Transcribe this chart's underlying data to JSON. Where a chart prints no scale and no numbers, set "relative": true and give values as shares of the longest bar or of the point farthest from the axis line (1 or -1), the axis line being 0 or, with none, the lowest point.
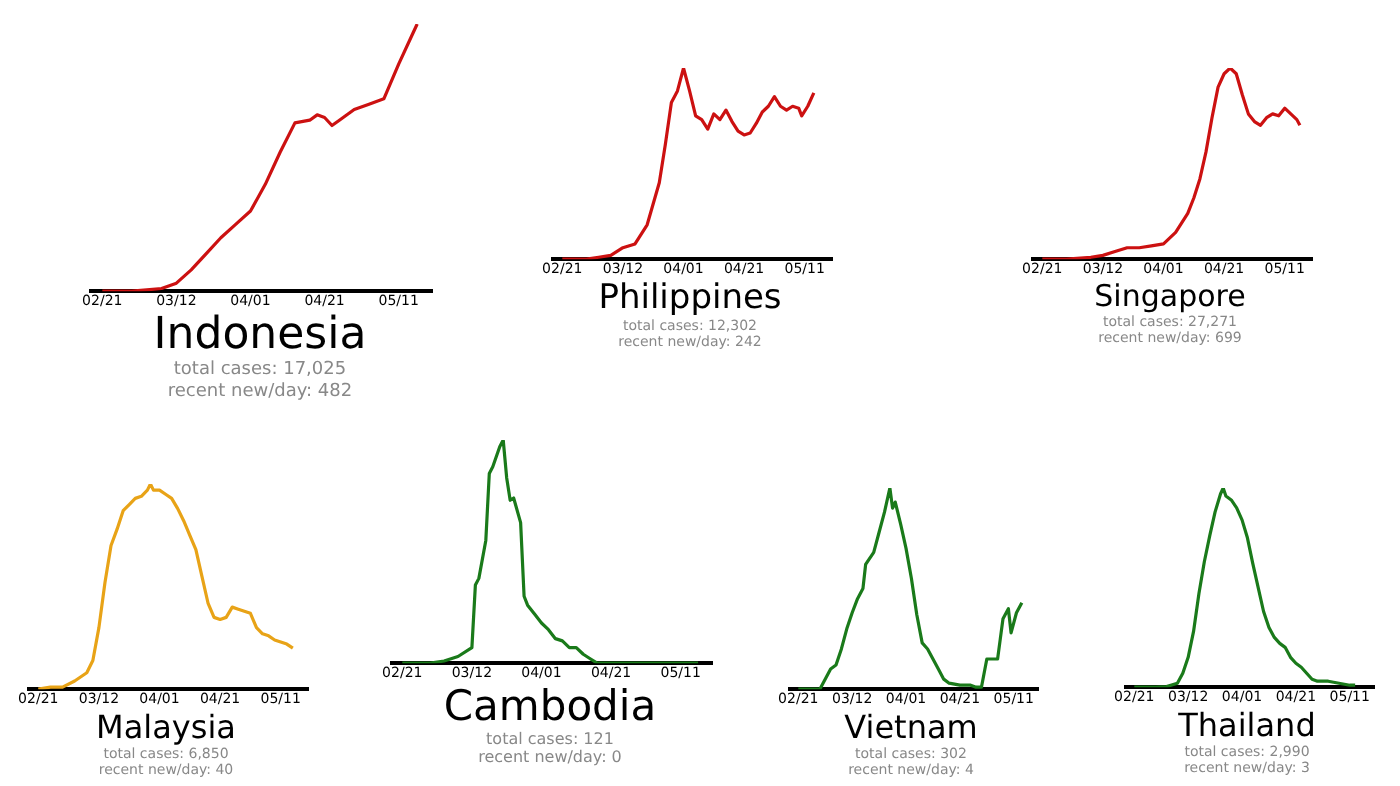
{
  "chart_data": [
    {
      "type": "line",
      "title": "Indonesia",
      "annotations": [
        "total cases: 17,025",
        "recent new/day: 482"
      ],
      "relative": true,
      "tick_labels": "x",
      "xlim": [
        "--02-18",
        "--05-20"
      ],
      "xticks": [
        {
          "value": "--02-21",
          "label": "02/21"
        },
        {
          "value": "--03-12",
          "label": "03/12"
        },
        {
          "value": "--04-01",
          "label": "04/01"
        },
        {
          "value": "--04-21",
          "label": "04/21"
        },
        {
          "value": "--05-11",
          "label": "05/11"
        }
      ],
      "series": [
        {
          "color": "#cc1111",
          "x": [
            "--02-21",
            "--02-25",
            "--02-29",
            "--03-04",
            "--03-08",
            "--03-12",
            "--03-16",
            "--03-20",
            "--03-24",
            "--03-28",
            "--04-01",
            "--04-05",
            "--04-09",
            "--04-13",
            "--04-17",
            "--04-19",
            "--04-21",
            "--04-23",
            "--04-25",
            "--04-29",
            "--05-03",
            "--05-07",
            "--05-11",
            "--05-15",
            "--05-16"
          ],
          "values": [
            0,
            0,
            0,
            0.005,
            0.01,
            0.03,
            0.08,
            0.14,
            0.2,
            0.25,
            0.3,
            0.4,
            0.52,
            0.63,
            0.64,
            0.66,
            0.65,
            0.62,
            0.64,
            0.68,
            0.7,
            0.72,
            0.85,
            0.97,
            1.0
          ]
        }
      ]
    },
    {
      "type": "line",
      "title": "Philippines",
      "annotations": [
        "total cases: 12,302",
        "recent new/day: 242"
      ],
      "relative": true,
      "tick_labels": "x",
      "xlim": [
        "--02-18",
        "--05-20"
      ],
      "xticks": [
        {
          "value": "--02-21",
          "label": "02/21"
        },
        {
          "value": "--03-12",
          "label": "03/12"
        },
        {
          "value": "--04-01",
          "label": "04/01"
        },
        {
          "value": "--04-21",
          "label": "04/21"
        },
        {
          "value": "--05-11",
          "label": "05/11"
        }
      ],
      "series": [
        {
          "color": "#cc1111",
          "x": [
            "--02-21",
            "--02-29",
            "--03-04",
            "--03-08",
            "--03-12",
            "--03-16",
            "--03-20",
            "--03-24",
            "--03-26",
            "--03-28",
            "--03-30",
            "--04-01",
            "--04-03",
            "--04-05",
            "--04-07",
            "--04-09",
            "--04-11",
            "--04-13",
            "--04-15",
            "--04-17",
            "--04-19",
            "--04-21",
            "--04-23",
            "--04-25",
            "--04-27",
            "--04-29",
            "--05-01",
            "--05-03",
            "--05-05",
            "--05-07",
            "--05-09",
            "--05-10",
            "--05-12",
            "--05-14"
          ],
          "values": [
            0,
            0,
            0.01,
            0.02,
            0.06,
            0.08,
            0.18,
            0.4,
            0.6,
            0.82,
            0.88,
            1.0,
            0.88,
            0.75,
            0.73,
            0.68,
            0.76,
            0.73,
            0.78,
            0.72,
            0.67,
            0.65,
            0.66,
            0.71,
            0.77,
            0.8,
            0.85,
            0.8,
            0.78,
            0.8,
            0.79,
            0.75,
            0.8,
            0.87
          ]
        }
      ]
    },
    {
      "type": "line",
      "title": "Singapore",
      "annotations": [
        "total cases: 27,271",
        "recent new/day: 699"
      ],
      "relative": true,
      "tick_labels": "x",
      "xlim": [
        "--02-18",
        "--05-20"
      ],
      "xticks": [
        {
          "value": "--02-21",
          "label": "02/21"
        },
        {
          "value": "--03-12",
          "label": "03/12"
        },
        {
          "value": "--04-01",
          "label": "04/01"
        },
        {
          "value": "--04-21",
          "label": "04/21"
        },
        {
          "value": "--05-11",
          "label": "05/11"
        }
      ],
      "series": [
        {
          "color": "#cc1111",
          "x": [
            "--02-21",
            "--02-29",
            "--03-08",
            "--03-12",
            "--03-16",
            "--03-20",
            "--03-24",
            "--03-28",
            "--04-01",
            "--04-05",
            "--04-09",
            "--04-11",
            "--04-13",
            "--04-15",
            "--04-17",
            "--04-19",
            "--04-21",
            "--04-23",
            "--04-25",
            "--04-27",
            "--04-29",
            "--05-01",
            "--05-03",
            "--05-05",
            "--05-07",
            "--05-09",
            "--05-11",
            "--05-13",
            "--05-15",
            "--05-16"
          ],
          "values": [
            0,
            0,
            0.01,
            0.02,
            0.04,
            0.06,
            0.06,
            0.07,
            0.08,
            0.14,
            0.24,
            0.32,
            0.42,
            0.56,
            0.74,
            0.9,
            0.97,
            1.0,
            0.97,
            0.86,
            0.76,
            0.72,
            0.7,
            0.74,
            0.76,
            0.75,
            0.79,
            0.76,
            0.73,
            0.7
          ]
        }
      ]
    },
    {
      "type": "line",
      "title": "Malaysia",
      "annotations": [
        "total cases: 6,850",
        "recent new/day: 40"
      ],
      "relative": true,
      "tick_labels": "x",
      "xlim": [
        "--02-18",
        "--05-20"
      ],
      "xticks": [
        {
          "value": "--02-21",
          "label": "02/21"
        },
        {
          "value": "--03-12",
          "label": "03/12"
        },
        {
          "value": "--04-01",
          "label": "04/01"
        },
        {
          "value": "--04-21",
          "label": "04/21"
        },
        {
          "value": "--05-11",
          "label": "05/11"
        }
      ],
      "series": [
        {
          "color": "#e8a317",
          "x": [
            "--02-21",
            "--02-25",
            "--02-29",
            "--03-04",
            "--03-08",
            "--03-10",
            "--03-12",
            "--03-14",
            "--03-16",
            "--03-18",
            "--03-20",
            "--03-22",
            "--03-24",
            "--03-26",
            "--03-28",
            "--03-29",
            "--03-30",
            "--04-01",
            "--04-03",
            "--04-05",
            "--04-07",
            "--04-09",
            "--04-11",
            "--04-13",
            "--04-15",
            "--04-17",
            "--04-19",
            "--04-21",
            "--04-23",
            "--04-25",
            "--04-27",
            "--04-29",
            "--05-01",
            "--05-03",
            "--05-05",
            "--05-07",
            "--05-09",
            "--05-11",
            "--05-13",
            "--05-15"
          ],
          "values": [
            0,
            0.01,
            0.01,
            0.04,
            0.08,
            0.14,
            0.3,
            0.52,
            0.7,
            0.78,
            0.87,
            0.9,
            0.93,
            0.94,
            0.97,
            1.0,
            0.97,
            0.97,
            0.95,
            0.93,
            0.88,
            0.82,
            0.75,
            0.68,
            0.55,
            0.42,
            0.35,
            0.34,
            0.35,
            0.4,
            0.39,
            0.38,
            0.37,
            0.3,
            0.27,
            0.26,
            0.24,
            0.23,
            0.22,
            0.2
          ]
        }
      ]
    },
    {
      "type": "line",
      "title": "Cambodia",
      "annotations": [
        "total cases: 121",
        "recent new/day: 0"
      ],
      "relative": true,
      "tick_labels": "x",
      "xlim": [
        "--02-18",
        "--05-20"
      ],
      "xticks": [
        {
          "value": "--02-21",
          "label": "02/21"
        },
        {
          "value": "--03-12",
          "label": "03/12"
        },
        {
          "value": "--04-01",
          "label": "04/01"
        },
        {
          "value": "--04-21",
          "label": "04/21"
        },
        {
          "value": "--05-11",
          "label": "05/11"
        }
      ],
      "series": [
        {
          "color": "#1a7a1a",
          "x": [
            "--02-21",
            "--02-29",
            "--03-04",
            "--03-08",
            "--03-12",
            "--03-13",
            "--03-14",
            "--03-16",
            "--03-17",
            "--03-18",
            "--03-20",
            "--03-21",
            "--03-22",
            "--03-23",
            "--03-24",
            "--03-26",
            "--03-27",
            "--03-28",
            "--03-30",
            "--04-01",
            "--04-03",
            "--04-05",
            "--04-07",
            "--04-09",
            "--04-11",
            "--04-13",
            "--04-15",
            "--04-17",
            "--04-21",
            "--05-11",
            "--05-16"
          ],
          "values": [
            0,
            0,
            0.01,
            0.03,
            0.07,
            0.35,
            0.38,
            0.55,
            0.85,
            0.88,
            0.97,
            1.0,
            0.83,
            0.73,
            0.74,
            0.63,
            0.3,
            0.26,
            0.22,
            0.18,
            0.15,
            0.11,
            0.1,
            0.07,
            0.07,
            0.04,
            0.02,
            0,
            0,
            0,
            0
          ]
        }
      ]
    },
    {
      "type": "line",
      "title": "Vietnam",
      "annotations": [
        "total cases: 302",
        "recent new/day: 4"
      ],
      "relative": true,
      "tick_labels": "x",
      "xlim": [
        "--02-18",
        "--05-20"
      ],
      "xticks": [
        {
          "value": "--02-21",
          "label": "02/21"
        },
        {
          "value": "--03-12",
          "label": "03/12"
        },
        {
          "value": "--04-01",
          "label": "04/01"
        },
        {
          "value": "--04-21",
          "label": "04/21"
        },
        {
          "value": "--05-11",
          "label": "05/11"
        }
      ],
      "series": [
        {
          "color": "#1a7a1a",
          "x": [
            "--02-21",
            "--02-29",
            "--03-04",
            "--03-06",
            "--03-08",
            "--03-10",
            "--03-12",
            "--03-14",
            "--03-16",
            "--03-17",
            "--03-20",
            "--03-22",
            "--03-24",
            "--03-26",
            "--03-27",
            "--03-28",
            "--03-30",
            "--04-01",
            "--04-03",
            "--04-05",
            "--04-07",
            "--04-09",
            "--04-11",
            "--04-13",
            "--04-15",
            "--04-17",
            "--04-21",
            "--04-25",
            "--04-27",
            "--04-29",
            "--05-01",
            "--05-03",
            "--05-05",
            "--05-06",
            "--05-07",
            "--05-09",
            "--05-10",
            "--05-12",
            "--05-14"
          ],
          "values": [
            0,
            0,
            0.1,
            0.12,
            0.2,
            0.3,
            0.38,
            0.45,
            0.5,
            0.62,
            0.68,
            0.78,
            0.88,
            1.0,
            0.9,
            0.93,
            0.82,
            0.7,
            0.55,
            0.37,
            0.23,
            0.2,
            0.15,
            0.1,
            0.05,
            0.03,
            0.02,
            0.02,
            0.01,
            0.01,
            0.15,
            0.15,
            0.15,
            0.25,
            0.35,
            0.4,
            0.28,
            0.38,
            0.43
          ]
        }
      ]
    },
    {
      "type": "line",
      "title": "Thailand",
      "annotations": [
        "total cases: 2,990",
        "recent new/day: 3"
      ],
      "relative": true,
      "tick_labels": "x",
      "xlim": [
        "--02-18",
        "--05-20"
      ],
      "xticks": [
        {
          "value": "--02-21",
          "label": "02/21"
        },
        {
          "value": "--03-12",
          "label": "03/12"
        },
        {
          "value": "--04-01",
          "label": "04/01"
        },
        {
          "value": "--04-21",
          "label": "04/21"
        },
        {
          "value": "--05-11",
          "label": "05/11"
        }
      ],
      "series": [
        {
          "color": "#1a7a1a",
          "x": [
            "--02-21",
            "--02-29",
            "--03-04",
            "--03-08",
            "--03-10",
            "--03-12",
            "--03-14",
            "--03-16",
            "--03-18",
            "--03-20",
            "--03-22",
            "--03-24",
            "--03-25",
            "--03-26",
            "--03-28",
            "--03-30",
            "--04-01",
            "--04-03",
            "--04-05",
            "--04-07",
            "--04-09",
            "--04-11",
            "--04-13",
            "--04-15",
            "--04-17",
            "--04-19",
            "--04-21",
            "--04-23",
            "--04-25",
            "--04-27",
            "--04-29",
            "--05-03",
            "--05-07",
            "--05-11",
            "--05-13"
          ],
          "values": [
            0,
            0,
            0.003,
            0.02,
            0.07,
            0.15,
            0.28,
            0.47,
            0.63,
            0.76,
            0.88,
            0.97,
            1.0,
            0.96,
            0.94,
            0.9,
            0.84,
            0.75,
            0.62,
            0.5,
            0.38,
            0.3,
            0.25,
            0.22,
            0.2,
            0.15,
            0.12,
            0.1,
            0.07,
            0.04,
            0.03,
            0.03,
            0.02,
            0.01,
            0.01
          ]
        }
      ]
    }
  ]
}
